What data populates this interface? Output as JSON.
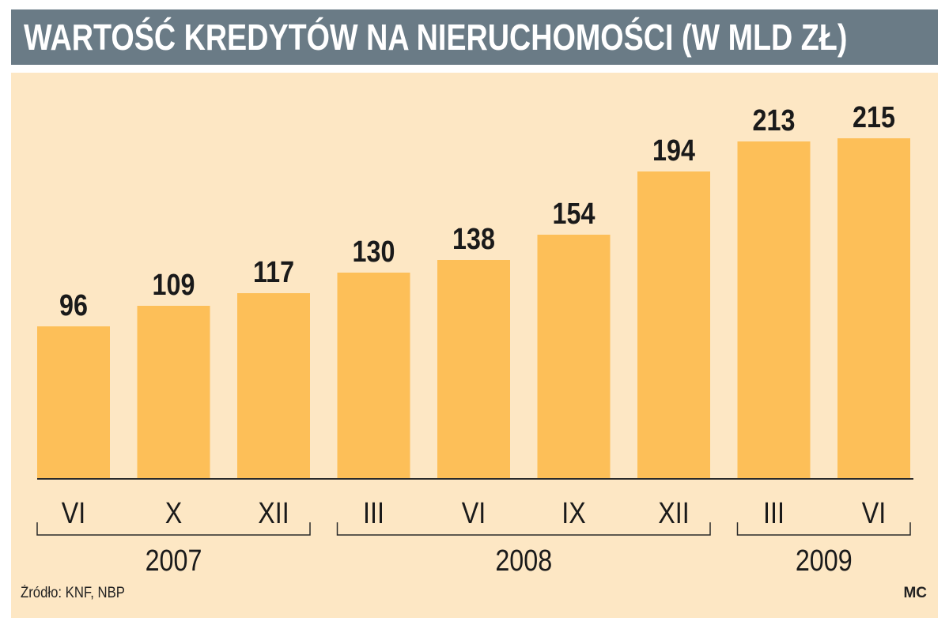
{
  "title": "WARTOŚĆ KREDYTÓW NA NIERUCHOMOŚCI (W MLD ZŁ)",
  "source": "Źródło: KNF, NBP",
  "author": "MC",
  "colors": {
    "title_bg": "#6a7b86",
    "panel_bg": "#fde7c4",
    "bar": "#fdbf58",
    "axis": "#2a2a2a"
  },
  "chart_data": {
    "type": "bar",
    "title": "WARTOŚĆ KREDYTÓW NA NIERUCHOMOŚCI (W MLD ZŁ)",
    "categories": [
      "VI",
      "X",
      "XII",
      "III",
      "VI",
      "IX",
      "XII",
      "III",
      "VI"
    ],
    "values": [
      96,
      109,
      117,
      130,
      138,
      154,
      194,
      213,
      215
    ],
    "groups": [
      {
        "label": "2007",
        "start": 0,
        "end": 2
      },
      {
        "label": "2008",
        "start": 3,
        "end": 6
      },
      {
        "label": "2009",
        "start": 7,
        "end": 8
      }
    ],
    "xlabel": "",
    "ylabel": "",
    "ylim": [
      0,
      215
    ],
    "grid": false,
    "data_labels": true
  }
}
